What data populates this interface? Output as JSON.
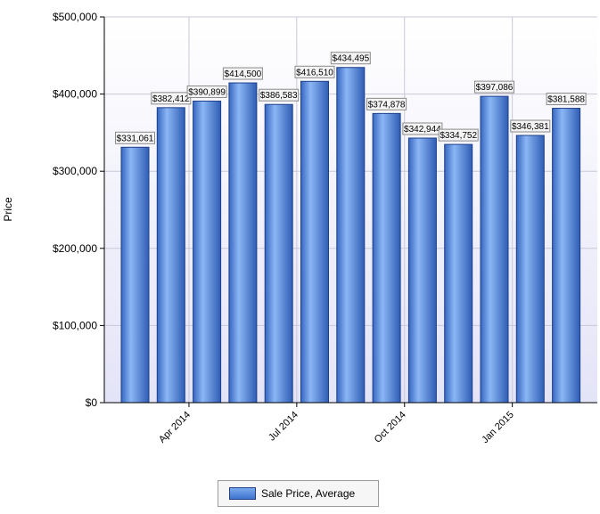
{
  "chart_data": {
    "type": "bar",
    "title": "",
    "ylabel": "Price",
    "xlabel": "",
    "ylim": [
      0,
      500000
    ],
    "y_ticks": [
      "$0",
      "$100,000",
      "$200,000",
      "$300,000",
      "$400,000",
      "$500,000"
    ],
    "x_tick_labels": [
      {
        "label": "Apr 2014",
        "after_index": 1
      },
      {
        "label": "Jul 2014",
        "after_index": 4
      },
      {
        "label": "Oct 2014",
        "after_index": 7
      },
      {
        "label": "Jan 2015",
        "after_index": 10
      }
    ],
    "series": [
      {
        "name": "Sale Price, Average",
        "values": [
          331061,
          382412,
          390899,
          414500,
          386583,
          416510,
          434495,
          374878,
          342944,
          334752,
          397086,
          346381,
          381588
        ],
        "labels": [
          "$331,061",
          "$382,412",
          "$390,899",
          "$414,500",
          "$386,583",
          "$416,510",
          "$434,495",
          "$374,878",
          "$342,944",
          "$334,752",
          "$397,086",
          "$346,381",
          "$381,588"
        ]
      }
    ],
    "grid": true,
    "legend_position": "bottom-center",
    "colors": {
      "bar_top": "#7aaaf0",
      "bar_bottom": "#3a6fcf",
      "bar_stroke": "#1d3f8a",
      "plot_bg_top": "#ffffff",
      "plot_bg_bottom": "#e6e6fa"
    }
  },
  "legend": {
    "label": "Sale Price, Average"
  }
}
